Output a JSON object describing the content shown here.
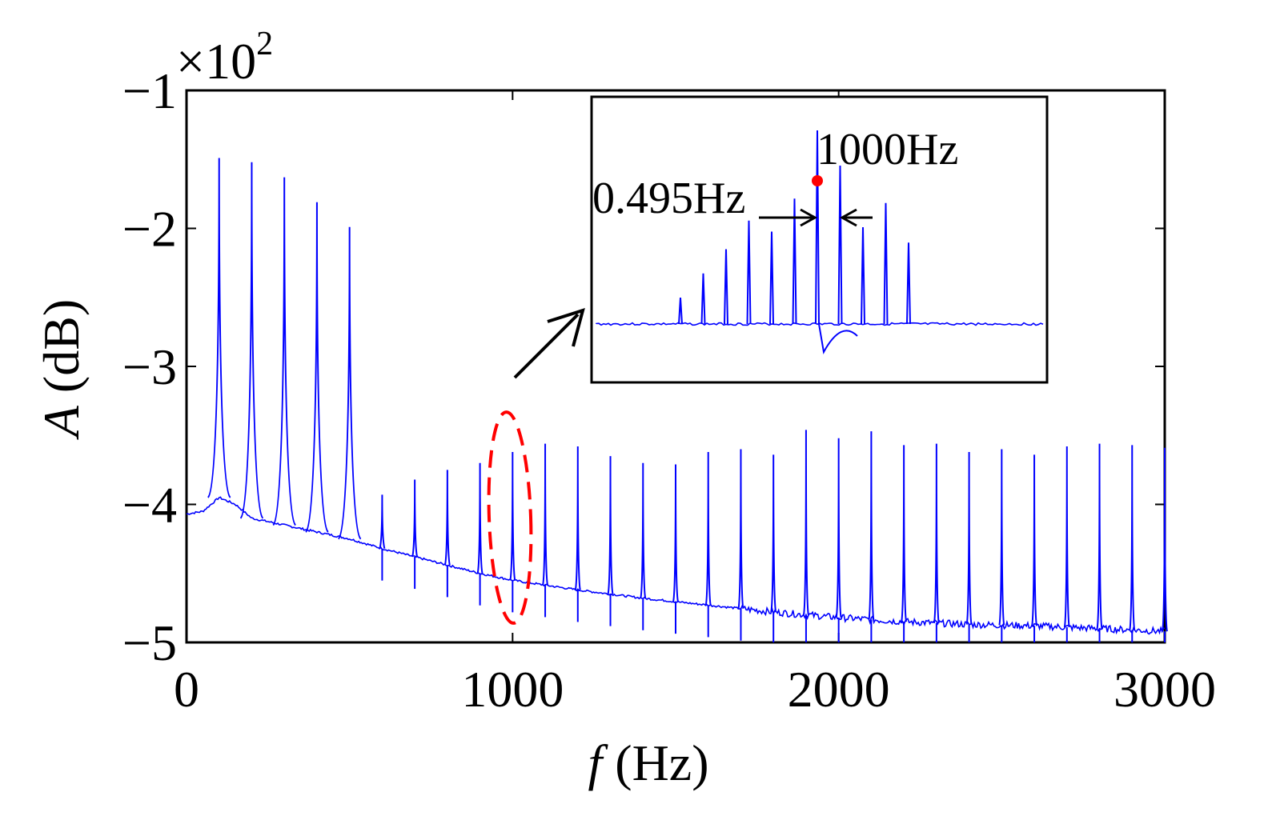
{
  "chart_data": {
    "type": "line",
    "xlabel_var": "f",
    "xlabel_unit": " (Hz)",
    "ylabel_var": "A",
    "ylabel_unit": " (dB)",
    "scale_times": "×10",
    "scale_exp": "2",
    "xlim": [
      0,
      3000
    ],
    "ylim": [
      -5,
      -1
    ],
    "x_ticks": [
      0,
      1000,
      2000,
      3000
    ],
    "x_tick_labels": [
      "0",
      "1000",
      "2000",
      "3000"
    ],
    "y_ticks": [
      -1,
      -2,
      -3,
      -4,
      -5
    ],
    "y_tick_labels": [
      "−1",
      "−2",
      "−3",
      "−4",
      "−5"
    ],
    "grid": false,
    "line_color": "#0000ff",
    "highlight_color": "#ff0000",
    "baseline": [
      [
        0,
        -4.07
      ],
      [
        50,
        -4.05
      ],
      [
        100,
        -3.95
      ],
      [
        150,
        -4.0
      ],
      [
        200,
        -4.1
      ],
      [
        300,
        -4.15
      ],
      [
        400,
        -4.2
      ],
      [
        500,
        -4.25
      ],
      [
        600,
        -4.32
      ],
      [
        700,
        -4.38
      ],
      [
        800,
        -4.44
      ],
      [
        900,
        -4.5
      ],
      [
        1000,
        -4.55
      ],
      [
        1200,
        -4.62
      ],
      [
        1400,
        -4.68
      ],
      [
        1600,
        -4.73
      ],
      [
        1800,
        -4.78
      ],
      [
        2000,
        -4.82
      ],
      [
        2200,
        -4.85
      ],
      [
        2400,
        -4.87
      ],
      [
        2600,
        -4.88
      ],
      [
        2800,
        -4.9
      ],
      [
        3000,
        -4.92
      ]
    ],
    "peaks": [
      {
        "f": 100,
        "a": -1.49
      },
      {
        "f": 200,
        "a": -1.52
      },
      {
        "f": 300,
        "a": -1.63
      },
      {
        "f": 400,
        "a": -1.81
      },
      {
        "f": 500,
        "a": -1.99
      },
      {
        "f": 600,
        "a": -3.93
      },
      {
        "f": 700,
        "a": -3.82
      },
      {
        "f": 800,
        "a": -3.75
      },
      {
        "f": 900,
        "a": -3.7
      },
      {
        "f": 1000,
        "a": -3.62
      },
      {
        "f": 1100,
        "a": -3.56
      },
      {
        "f": 1200,
        "a": -3.58
      },
      {
        "f": 1300,
        "a": -3.65
      },
      {
        "f": 1400,
        "a": -3.7
      },
      {
        "f": 1500,
        "a": -3.71
      },
      {
        "f": 1600,
        "a": -3.62
      },
      {
        "f": 1700,
        "a": -3.6
      },
      {
        "f": 1800,
        "a": -3.64
      },
      {
        "f": 1900,
        "a": -3.46
      },
      {
        "f": 2000,
        "a": -3.52
      },
      {
        "f": 2100,
        "a": -3.47
      },
      {
        "f": 2200,
        "a": -3.57
      },
      {
        "f": 2300,
        "a": -3.56
      },
      {
        "f": 2400,
        "a": -3.62
      },
      {
        "f": 2500,
        "a": -3.6
      },
      {
        "f": 2600,
        "a": -3.64
      },
      {
        "f": 2700,
        "a": -3.58
      },
      {
        "f": 2800,
        "a": -3.56
      },
      {
        "f": 2900,
        "a": -3.57
      },
      {
        "f": 3000,
        "a": -3.59
      }
    ],
    "inset": {
      "peak_label": "1000Hz",
      "spacing_label": "0.495Hz",
      "peaks_rel": [
        {
          "i": -6,
          "h": 0.12
        },
        {
          "i": -5,
          "h": 0.23
        },
        {
          "i": -4,
          "h": 0.34
        },
        {
          "i": -3,
          "h": 0.47
        },
        {
          "i": -2,
          "h": 0.42
        },
        {
          "i": -1,
          "h": 0.57
        },
        {
          "i": 0,
          "h": 0.88
        },
        {
          "i": 1,
          "h": 0.72
        },
        {
          "i": 2,
          "h": 0.44
        },
        {
          "i": 3,
          "h": 0.55
        },
        {
          "i": 4,
          "h": 0.37
        }
      ]
    }
  }
}
